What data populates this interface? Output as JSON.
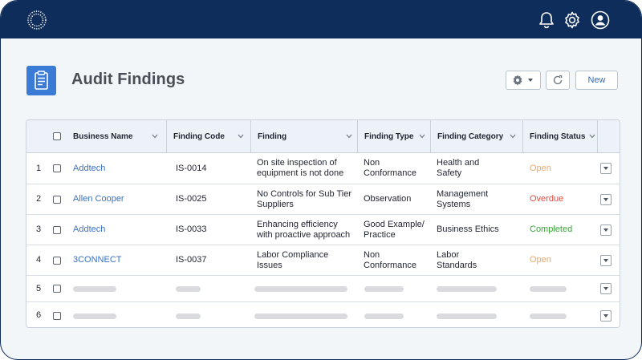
{
  "header": {
    "icons": [
      "logo-icon",
      "bell-icon",
      "gear-icon",
      "user-avatar-icon"
    ]
  },
  "page": {
    "title": "Audit Findings",
    "icon": "clipboard-icon"
  },
  "toolbar": {
    "settings_icon": "gear-icon",
    "refresh_icon": "refresh-icon",
    "new_label": "New"
  },
  "table": {
    "columns": [
      "Business Name",
      "Finding Code",
      "Finding",
      "Finding Type",
      "Finding Category",
      "Finding Status"
    ],
    "rows": [
      {
        "num": "1",
        "business": "Addtech",
        "code": "IS-0014",
        "finding": [
          "On site inspection of",
          "equipment is not done"
        ],
        "type": [
          "Non",
          "Conformance"
        ],
        "category": [
          "Health and",
          "Safety"
        ],
        "status": "Open",
        "status_kind": "open"
      },
      {
        "num": "2",
        "business": "Allen Cooper",
        "code": "IS-0025",
        "finding": [
          "No Controls for Sub Tier",
          "Suppliers"
        ],
        "type": [
          "Observation"
        ],
        "category": [
          "Management",
          "Systems"
        ],
        "status": "Overdue",
        "status_kind": "overdue"
      },
      {
        "num": "3",
        "business": "Addtech",
        "code": "IS-0033",
        "finding": [
          "Enhancing efficiency",
          "with proactive approach"
        ],
        "type": [
          "Good Example/",
          "Practice"
        ],
        "category": [
          "Business Ethics"
        ],
        "status": "Completed",
        "status_kind": "completed"
      },
      {
        "num": "4",
        "business": "3CONNECT",
        "code": "IS-0037",
        "finding": [
          "Labor Compliance",
          "Issues"
        ],
        "type": [
          "Non",
          "Conformance"
        ],
        "category": [
          "Labor",
          "Standards"
        ],
        "status": "Open",
        "status_kind": "open"
      }
    ],
    "placeholder_rows": [
      "5",
      "6"
    ]
  },
  "colors": {
    "topbar": "#0f2d5b",
    "accent": "#3a7bd5",
    "link": "#3a72c4",
    "status_open": "#f0a660",
    "status_overdue": "#e0483d",
    "status_completed": "#3aa43a"
  }
}
